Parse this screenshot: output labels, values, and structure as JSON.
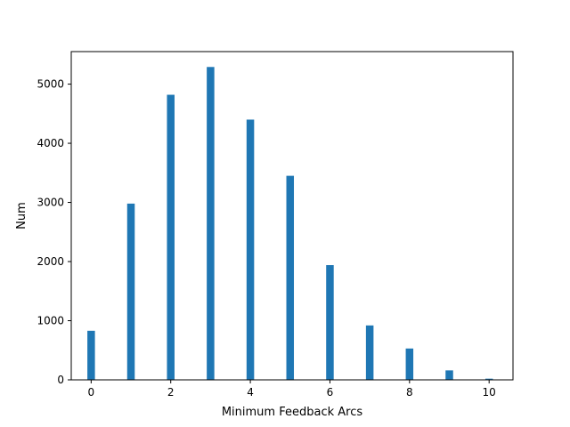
{
  "chart_data": {
    "type": "bar",
    "title": "",
    "xlabel": "Minimum Feedback Arcs",
    "ylabel": "Num",
    "x": [
      0,
      1,
      2,
      3,
      4,
      5,
      6,
      7,
      8,
      9,
      10
    ],
    "values": [
      830,
      2980,
      4820,
      5290,
      4400,
      3450,
      1940,
      920,
      530,
      160,
      20
    ],
    "xlim": [
      -0.5,
      10.6
    ],
    "ylim": [
      0,
      5550
    ],
    "xticks": [
      0,
      2,
      4,
      6,
      8,
      10
    ],
    "yticks": [
      0,
      1000,
      2000,
      3000,
      4000,
      5000
    ],
    "bar_color": "#1f77b4",
    "grid": false,
    "legend": "none"
  }
}
